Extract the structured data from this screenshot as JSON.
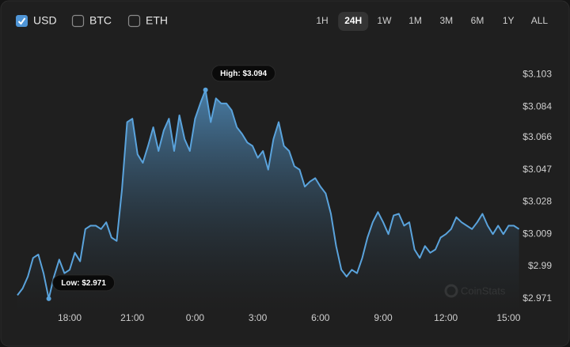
{
  "controls": {
    "currencies": [
      {
        "label": "USD",
        "checked": true
      },
      {
        "label": "BTC",
        "checked": false
      },
      {
        "label": "ETH",
        "checked": false
      }
    ],
    "ranges": [
      {
        "label": "1H",
        "active": false
      },
      {
        "label": "24H",
        "active": true
      },
      {
        "label": "1W",
        "active": false
      },
      {
        "label": "1M",
        "active": false
      },
      {
        "label": "3M",
        "active": false
      },
      {
        "label": "6M",
        "active": false
      },
      {
        "label": "1Y",
        "active": false
      },
      {
        "label": "ALL",
        "active": false
      }
    ]
  },
  "watermark": "CoinStats",
  "chart_data": {
    "type": "area",
    "color": "#5aa3dc",
    "high_label": "High: $3.094",
    "low_label": "Low: $2.971",
    "categories": [
      null,
      null,
      null,
      null,
      null,
      null,
      null,
      null,
      null,
      null,
      "18:00",
      null,
      null,
      null,
      null,
      null,
      null,
      null,
      null,
      null,
      null,
      null,
      "21:00",
      null,
      null,
      null,
      null,
      null,
      null,
      null,
      null,
      null,
      null,
      null,
      "0:00",
      null,
      null,
      null,
      null,
      null,
      null,
      null,
      null,
      null,
      null,
      null,
      "3:00",
      null,
      null,
      null,
      null,
      null,
      null,
      null,
      null,
      null,
      null,
      null,
      "6:00",
      null,
      null,
      null,
      null,
      null,
      null,
      null,
      null,
      null,
      null,
      null,
      "9:00",
      null,
      null,
      null,
      null,
      null,
      null,
      null,
      null,
      null,
      null,
      null,
      "12:00",
      null,
      null,
      null,
      null,
      null,
      null,
      null,
      null,
      null,
      null,
      null,
      "15:00",
      null,
      null
    ],
    "values": [
      2.973,
      2.977,
      2.984,
      2.995,
      2.997,
      2.986,
      2.971,
      2.984,
      2.994,
      2.986,
      2.988,
      2.998,
      2.993,
      3.012,
      3.014,
      3.014,
      3.012,
      3.016,
      3.007,
      3.005,
      3.035,
      3.075,
      3.077,
      3.056,
      3.051,
      3.061,
      3.072,
      3.058,
      3.07,
      3.077,
      3.058,
      3.079,
      3.065,
      3.058,
      3.077,
      3.086,
      3.094,
      3.075,
      3.089,
      3.086,
      3.086,
      3.082,
      3.072,
      3.068,
      3.063,
      3.061,
      3.054,
      3.058,
      3.047,
      3.065,
      3.075,
      3.061,
      3.058,
      3.049,
      3.047,
      3.037,
      3.04,
      3.042,
      3.037,
      3.033,
      3.021,
      3.002,
      2.988,
      2.984,
      2.988,
      2.986,
      2.995,
      3.007,
      3.016,
      3.022,
      3.016,
      3.009,
      3.02,
      3.021,
      3.014,
      3.016,
      3.0,
      2.995,
      3.002,
      2.998,
      3.0,
      3.007,
      3.009,
      3.012,
      3.019,
      3.016,
      3.014,
      3.012,
      3.016,
      3.021,
      3.014,
      3.009,
      3.014,
      3.009,
      3.014,
      3.014,
      3.012
    ],
    "ylim": [
      2.963,
      3.126
    ],
    "yticks": [
      {
        "value": 2.971,
        "label": "$2.971"
      },
      {
        "value": 2.99,
        "label": "$2.99"
      },
      {
        "value": 3.009,
        "label": "$3.009"
      },
      {
        "value": 3.028,
        "label": "$3.028"
      },
      {
        "value": 3.047,
        "label": "$3.047"
      },
      {
        "value": 3.066,
        "label": "$3.066"
      },
      {
        "value": 3.084,
        "label": "$3.084"
      },
      {
        "value": 3.103,
        "label": "$3.103"
      }
    ]
  }
}
